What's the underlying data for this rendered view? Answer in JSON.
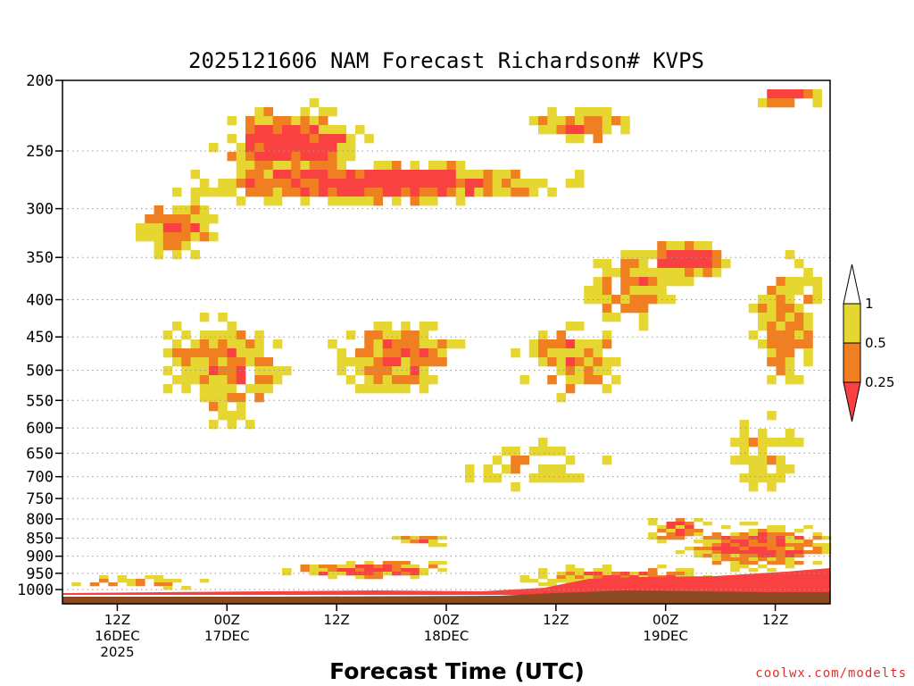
{
  "chart_data": {
    "type": "heatmap",
    "title": "2025121606 NAM Forecast Richardson# KVPS",
    "xlabel": "Forecast Time (UTC)",
    "ylabel": "",
    "y_axis": {
      "scale": "log-pressure",
      "range_hpa": [
        1050,
        200
      ],
      "ticks": [
        200,
        250,
        300,
        350,
        400,
        450,
        500,
        550,
        600,
        650,
        700,
        750,
        800,
        850,
        900,
        950,
        1000
      ]
    },
    "x_axis": {
      "range_hours": [
        0,
        84
      ],
      "ticks": [
        {
          "hour": 6,
          "lines": [
            "12Z",
            "16DEC",
            "2025"
          ]
        },
        {
          "hour": 18,
          "lines": [
            "00Z",
            "17DEC"
          ]
        },
        {
          "hour": 30,
          "lines": [
            "12Z"
          ]
        },
        {
          "hour": 42,
          "lines": [
            "00Z",
            "18DEC"
          ]
        },
        {
          "hour": 54,
          "lines": [
            "12Z"
          ]
        },
        {
          "hour": 66,
          "lines": [
            "00Z",
            "19DEC"
          ]
        },
        {
          "hour": 78,
          "lines": [
            "12Z"
          ]
        }
      ]
    },
    "legend": {
      "placement": "right",
      "labels": [
        "1",
        "0.5",
        "0.25"
      ],
      "bins": [
        {
          "range": "> 1",
          "color": "#ffffff"
        },
        {
          "range": "0.5 - 1",
          "color": "#e6d631"
        },
        {
          "range": "0.25 - 0.5",
          "color": "#ef7f20"
        },
        {
          "range": "< 0.25",
          "color": "#fa4141"
        }
      ]
    },
    "colors": {
      "low": "#fa4141",
      "mid": "#ef7f20",
      "high": "#e6d631",
      "ground": "#8b4a22",
      "gridline": "#9a9a9a"
    },
    "regions": [
      {
        "name": "upper-band",
        "time_range_h": [
          6,
          54
        ],
        "pressure_range_hpa": [
          265,
          320
        ],
        "class": "<0.25"
      },
      {
        "name": "upper-core",
        "time_range_h": [
          17,
          29
        ],
        "pressure_range_hpa": [
          225,
          275
        ],
        "class": "<0.25"
      },
      {
        "name": "upper-ne",
        "time_range_h": [
          60,
          72
        ],
        "pressure_range_hpa": [
          330,
          390
        ],
        "class": "<0.25"
      },
      {
        "name": "top-right",
        "time_range_h": [
          78,
          84
        ],
        "pressure_range_hpa": [
          200,
          215
        ],
        "class": "<0.25"
      },
      {
        "name": "mid-level",
        "time_range_h": [
          12,
          60
        ],
        "pressure_range_hpa": [
          400,
          580
        ],
        "class": "mixed"
      },
      {
        "name": "boundary-layer",
        "time_range_h": [
          0,
          84
        ],
        "pressure_range_hpa": [
          930,
          1030
        ],
        "class": "<0.25"
      }
    ]
  },
  "footer": {
    "credit": "coolwx.com/modelts"
  }
}
